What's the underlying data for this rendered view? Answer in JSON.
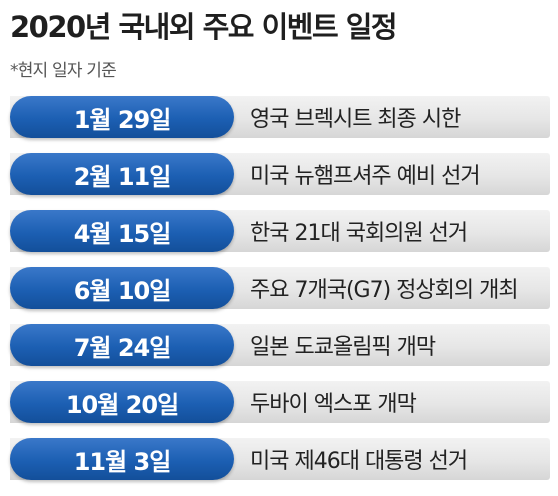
{
  "title": "2020년 국내외 주요 이벤트 일정",
  "note": "*현지 일자 기준",
  "colors": {
    "date_pill": "#1c5fb3",
    "row_background": "#e6e6e6"
  },
  "events": [
    {
      "date": "1월 29일",
      "event": "영국 브렉시트 최종 시한"
    },
    {
      "date": "2월 11일",
      "event": "미국 뉴햄프셔주 예비 선거"
    },
    {
      "date": "4월 15일",
      "event": "한국 21대 국회의원 선거"
    },
    {
      "date": "6월 10일",
      "event": "주요 7개국(G7) 정상회의 개최"
    },
    {
      "date": "7월 24일",
      "event": "일본 도쿄올림픽 개막"
    },
    {
      "date": "10월 20일",
      "event": "두바이 엑스포 개막"
    },
    {
      "date": "11월 3일",
      "event": "미국 제46대 대통령 선거"
    }
  ]
}
